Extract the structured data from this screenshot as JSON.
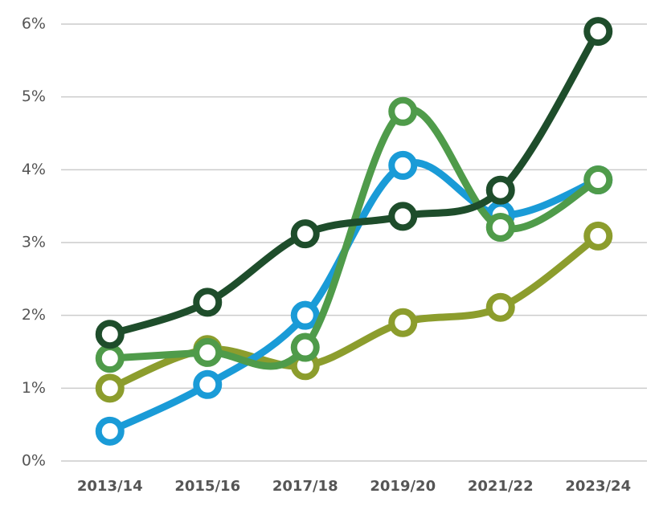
{
  "chart_data": {
    "type": "line",
    "categories": [
      "2013/14",
      "2015/16",
      "2017/18",
      "2019/20",
      "2021/22",
      "2023/24"
    ],
    "series": [
      {
        "color": "#8c9d2d",
        "values": [
          1.0,
          1.53,
          1.31,
          1.9,
          2.11,
          3.09
        ]
      },
      {
        "color": "#1a9bd7",
        "values": [
          0.41,
          1.05,
          2.0,
          4.06,
          3.38,
          3.86
        ]
      },
      {
        "color": "#4f9b4a",
        "values": [
          1.41,
          1.49,
          1.56,
          4.8,
          3.21,
          3.86
        ]
      },
      {
        "color": "#1e4d2b",
        "values": [
          1.74,
          2.18,
          3.12,
          3.36,
          3.72,
          5.9
        ]
      }
    ],
    "ylim": [
      0,
      6
    ],
    "yticks": [
      {
        "value": 0,
        "label": "0%"
      },
      {
        "value": 1,
        "label": "1%"
      },
      {
        "value": 2,
        "label": "2%"
      },
      {
        "value": 3,
        "label": "3%"
      },
      {
        "value": 4,
        "label": "4%"
      },
      {
        "value": 5,
        "label": "5%"
      },
      {
        "value": 6,
        "label": "6%"
      }
    ],
    "grid": true
  }
}
